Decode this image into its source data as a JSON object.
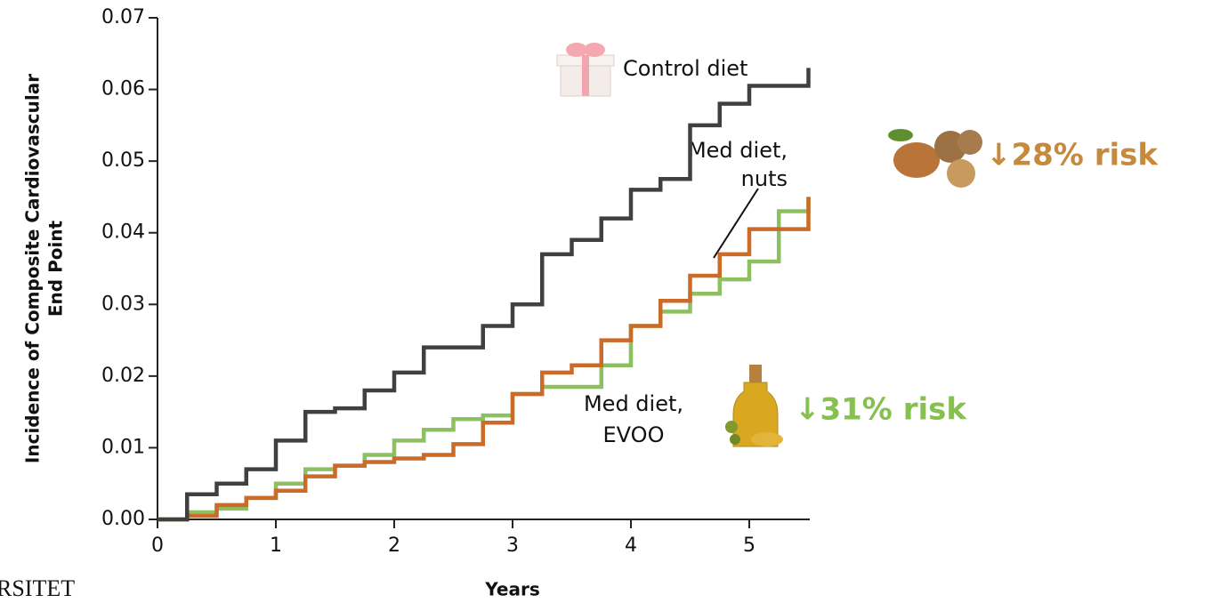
{
  "chart_data": {
    "type": "line",
    "steps": true,
    "ylabel": [
      "Incidence of Composite Cardiovascular",
      "End Point"
    ],
    "xlabel": "Years",
    "x": [
      0,
      0.25,
      0.5,
      0.75,
      1,
      1.25,
      1.5,
      1.75,
      2,
      2.25,
      2.5,
      2.75,
      3,
      3.25,
      3.5,
      3.75,
      4,
      4.25,
      4.5,
      4.75,
      5,
      5.25,
      5.5
    ],
    "series": [
      {
        "name": "Control diet",
        "color": "#404040",
        "values": [
          0,
          0.0035,
          0.005,
          0.007,
          0.011,
          0.015,
          0.0155,
          0.018,
          0.0205,
          0.024,
          0.024,
          0.027,
          0.03,
          0.037,
          0.039,
          0.042,
          0.046,
          0.0475,
          0.055,
          0.058,
          0.0605,
          0.0605,
          0.063
        ]
      },
      {
        "name": [
          "Med diet,",
          "nuts"
        ],
        "color": "#cc6a28",
        "values": [
          0,
          0.0005,
          0.002,
          0.003,
          0.004,
          0.006,
          0.0075,
          0.008,
          0.0085,
          0.009,
          0.0105,
          0.0135,
          0.0175,
          0.0205,
          0.0215,
          0.025,
          0.027,
          0.0305,
          0.034,
          0.037,
          0.0405,
          0.0405,
          0.045
        ]
      },
      {
        "name": [
          "Med diet,",
          "EVOO"
        ],
        "color": "#8cc061",
        "values": [
          0,
          0.001,
          0.0015,
          0.003,
          0.005,
          0.007,
          0.0075,
          0.009,
          0.011,
          0.0125,
          0.014,
          0.0145,
          0.0175,
          0.0185,
          0.0185,
          0.0215,
          0.027,
          0.029,
          0.0315,
          0.0335,
          0.036,
          0.043,
          0.045
        ]
      }
    ],
    "xlim": [
      0,
      5.5
    ],
    "xticks": [
      0,
      1,
      2,
      3,
      4,
      5
    ],
    "ylim": [
      0,
      0.07
    ],
    "yticks": [
      {
        "value": 0,
        "label": "0.00"
      },
      0.01,
      0.02,
      0.03,
      0.04,
      0.05,
      0.06,
      0.07
    ],
    "annotations": [
      {
        "text": "↓28% risk",
        "color": "#c68a3e"
      },
      {
        "text": "↓31% risk",
        "color": "#86c04f"
      }
    ],
    "footer": "RSITET"
  }
}
